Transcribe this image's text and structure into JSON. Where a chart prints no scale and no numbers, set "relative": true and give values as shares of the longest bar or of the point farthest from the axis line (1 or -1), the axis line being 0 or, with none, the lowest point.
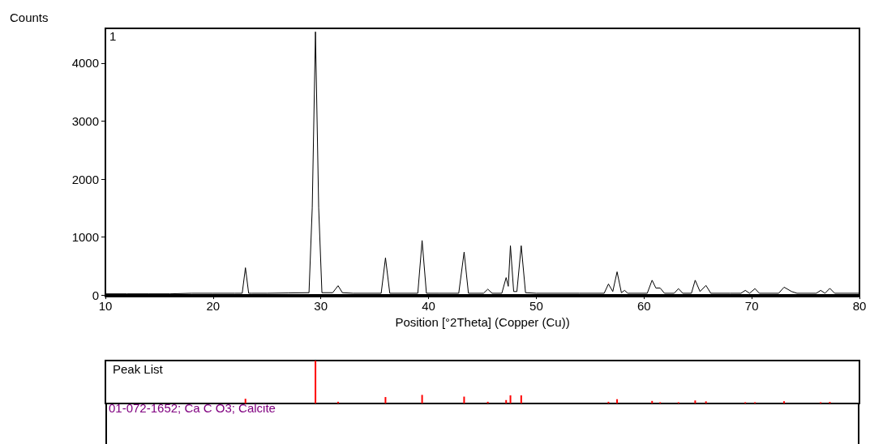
{
  "chart_data": [
    {
      "type": "line",
      "xlabel": "Position [°2Theta] (Copper (Cu))",
      "ylabel": "Counts",
      "annotations": [
        "1"
      ],
      "series": [
        {
          "color": "#000000",
          "x": [
            10,
            12,
            14,
            16,
            18,
            20,
            22,
            22.7,
            23.0,
            23.3,
            23.6,
            25,
            27,
            28.9,
            29.2,
            29.5,
            29.8,
            30.1,
            31.1,
            31.6,
            32.0,
            33,
            35.6,
            36.0,
            36.4,
            38,
            39.0,
            39.4,
            39.8,
            41,
            42.8,
            43.3,
            43.7,
            45.1,
            45.5,
            45.9,
            46.8,
            47.2,
            47.4,
            47.6,
            47.9,
            48.2,
            48.6,
            49.0,
            50,
            52,
            54,
            56.3,
            56.7,
            57.1,
            57.5,
            57.9,
            58.2,
            58.5,
            60.3,
            60.75,
            61.1,
            61.5,
            61.9,
            62.8,
            63.2,
            63.6,
            64.4,
            64.75,
            65.2,
            65.75,
            66.2,
            68,
            69.0,
            69.4,
            69.8,
            70.3,
            70.7,
            72.5,
            73.0,
            73.7,
            74.2,
            76.0,
            76.4,
            76.8,
            77.25,
            77.7,
            80
          ],
          "values": [
            20,
            20,
            20,
            20,
            30,
            30,
            30,
            30,
            470,
            30,
            30,
            30,
            35,
            40,
            1500,
            4540,
            1500,
            40,
            40,
            160,
            40,
            30,
            30,
            640,
            30,
            30,
            30,
            940,
            30,
            30,
            30,
            740,
            30,
            30,
            100,
            30,
            30,
            300,
            150,
            850,
            60,
            60,
            850,
            40,
            30,
            30,
            30,
            30,
            190,
            60,
            400,
            40,
            80,
            30,
            30,
            255,
            120,
            120,
            30,
            30,
            110,
            30,
            30,
            255,
            60,
            165,
            30,
            30,
            30,
            80,
            30,
            110,
            30,
            30,
            135,
            60,
            30,
            30,
            80,
            30,
            115,
            30,
            30
          ]
        }
      ],
      "xlim": [
        10,
        80
      ],
      "xticks": [
        10,
        20,
        30,
        40,
        50,
        60,
        70,
        80
      ],
      "ylim": [
        0,
        4600
      ],
      "yticks": [
        0,
        1000,
        2000,
        3000,
        4000
      ],
      "marker": "none",
      "line_style": "solid"
    },
    {
      "type": "bar",
      "title": "Peak List",
      "relative": true,
      "xlim": [
        10,
        80
      ],
      "annotations": [
        "01-072-1652; Ca C O3; Calcite"
      ],
      "series": [
        {
          "color": "#ff0000",
          "x": [
            23.0,
            29.5,
            31.6,
            36.0,
            39.4,
            43.3,
            45.5,
            47.2,
            47.6,
            48.6,
            56.7,
            57.5,
            60.75,
            61.5,
            63.2,
            64.75,
            65.75,
            69.4,
            70.3,
            73.0,
            76.4,
            77.25
          ],
          "values": [
            0.11,
            1,
            0.04,
            0.15,
            0.2,
            0.16,
            0.04,
            0.08,
            0.19,
            0.19,
            0.04,
            0.1,
            0.06,
            0.03,
            0.03,
            0.07,
            0.05,
            0.03,
            0.03,
            0.05,
            0.03,
            0.04
          ]
        }
      ]
    }
  ]
}
